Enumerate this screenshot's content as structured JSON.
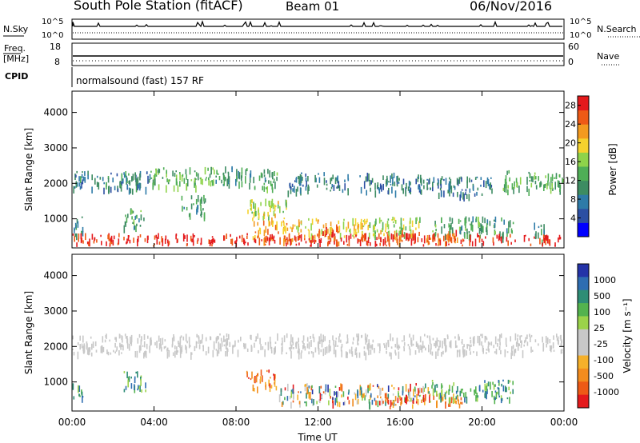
{
  "header": {
    "title": "South Pole Station (fitACF)",
    "beam": "Beam 01",
    "date": "06/Nov/2016"
  },
  "status_panels": {
    "nsky_label": "N.Sky",
    "nsearch_label": "N.Search",
    "freq_label_line1": "Freq.",
    "freq_label_line2": "[MHz]",
    "nave_label": "Nave",
    "cpid_label": "CPID",
    "cpid_value": "normalsound (fast) 157 RF",
    "noise_left_ticks": [
      "10^5",
      "10^0"
    ],
    "noise_right_ticks": [
      "10^5",
      "10^0"
    ],
    "freq_left_ticks": [
      "18",
      "8"
    ],
    "freq_right_ticks": [
      "60",
      "0"
    ]
  },
  "chart_data": [
    {
      "type": "heatmap",
      "name": "power",
      "title": "",
      "xlabel": "",
      "ylabel": "Slant Range [km]",
      "x_ticks": [
        "00:00",
        "04:00",
        "08:00",
        "12:00",
        "16:00",
        "20:00",
        "00:00"
      ],
      "xlim_hours": [
        0,
        24
      ],
      "y_ticks": [
        1000,
        2000,
        3000,
        4000
      ],
      "ylim": [
        180,
        4600
      ],
      "colorbar": {
        "label": "Power [dB]",
        "ticks": [
          4,
          8,
          12,
          16,
          20,
          24,
          28
        ],
        "range": [
          0,
          30
        ],
        "colors": [
          "#0000ff",
          "#2c4fa3",
          "#2e7ba8",
          "#3d8c62",
          "#4fae56",
          "#8ed34a",
          "#f5d22d",
          "#f39a1f",
          "#ee5a16",
          "#e41a1c"
        ]
      },
      "bands": [
        {
          "start_h": 0.0,
          "end_h": 3.8,
          "range_km": 2100,
          "value": 9
        },
        {
          "start_h": 3.8,
          "end_h": 7.0,
          "range_km": 2200,
          "value": 14
        },
        {
          "start_h": 7.0,
          "end_h": 8.7,
          "range_km": 2230,
          "value": 10
        },
        {
          "start_h": 8.7,
          "end_h": 10.0,
          "range_km": 2150,
          "value": 12
        },
        {
          "start_h": 10.5,
          "end_h": 13.5,
          "range_km": 2050,
          "value": 8
        },
        {
          "start_h": 14.0,
          "end_h": 17.5,
          "range_km": 2050,
          "value": 8
        },
        {
          "start_h": 17.5,
          "end_h": 20.5,
          "range_km": 1950,
          "value": 8
        },
        {
          "start_h": 21.0,
          "end_h": 24.0,
          "range_km": 2100,
          "value": 13
        },
        {
          "start_h": 0.0,
          "end_h": 0.5,
          "range_km": 800,
          "value": 10
        },
        {
          "start_h": 2.5,
          "end_h": 3.6,
          "range_km": 1050,
          "value": 12
        },
        {
          "start_h": 5.3,
          "end_h": 6.5,
          "range_km": 1400,
          "value": 12
        },
        {
          "start_h": 8.5,
          "end_h": 10.5,
          "range_km": 1300,
          "value": 18
        },
        {
          "start_h": 8.8,
          "end_h": 10.8,
          "range_km": 700,
          "value": 22
        },
        {
          "start_h": 10.8,
          "end_h": 14.5,
          "range_km": 750,
          "value": 20
        },
        {
          "start_h": 12.0,
          "end_h": 13.0,
          "range_km": 600,
          "value": 26
        },
        {
          "start_h": 14.5,
          "end_h": 17.0,
          "range_km": 800,
          "value": 16
        },
        {
          "start_h": 15.0,
          "end_h": 18.8,
          "range_km": 420,
          "value": 25
        },
        {
          "start_h": 17.5,
          "end_h": 21.5,
          "range_km": 800,
          "value": 12
        },
        {
          "start_h": 22.5,
          "end_h": 23.0,
          "range_km": 650,
          "value": 10
        },
        {
          "start_h": 0.0,
          "end_h": 24.0,
          "range_km": 330,
          "value": 28
        }
      ]
    },
    {
      "type": "heatmap",
      "name": "velocity",
      "title": "",
      "xlabel": "Time UT",
      "ylabel": "Slant Range [km]",
      "x_ticks": [
        "00:00",
        "04:00",
        "08:00",
        "12:00",
        "16:00",
        "20:00",
        "00:00"
      ],
      "xlim_hours": [
        0,
        24
      ],
      "y_ticks": [
        1000,
        2000,
        3000,
        4000
      ],
      "ylim": [
        180,
        4600
      ],
      "colorbar": {
        "label": "Velocity [m s⁻¹]",
        "ticks": [
          "1000",
          "500",
          "100",
          "25",
          "-25",
          "-100",
          "-500",
          "-1000"
        ],
        "colors": [
          "#2433a8",
          "#2e6db1",
          "#2e8d75",
          "#53b34e",
          "#9bd34a",
          "#c8c8c8",
          "#c8c8c8",
          "#f5b02a",
          "#f38c1e",
          "#ee5a16",
          "#e41a1c"
        ]
      },
      "bands": [
        {
          "start_h": 0.0,
          "end_h": 24.0,
          "range_km": 2100,
          "value": "ground"
        },
        {
          "start_h": 0.0,
          "end_h": 0.5,
          "range_km": 800,
          "value": "positive"
        },
        {
          "start_h": 2.5,
          "end_h": 3.6,
          "range_km": 1050,
          "value": "positive"
        },
        {
          "start_h": 8.5,
          "end_h": 10.0,
          "range_km": 1100,
          "value": "negative"
        },
        {
          "start_h": 10.0,
          "end_h": 17.5,
          "range_km": 700,
          "value": "mixed"
        },
        {
          "start_h": 15.0,
          "end_h": 19.0,
          "range_km": 420,
          "value": "negative"
        },
        {
          "start_h": 17.5,
          "end_h": 21.5,
          "range_km": 800,
          "value": "positive"
        }
      ]
    }
  ]
}
